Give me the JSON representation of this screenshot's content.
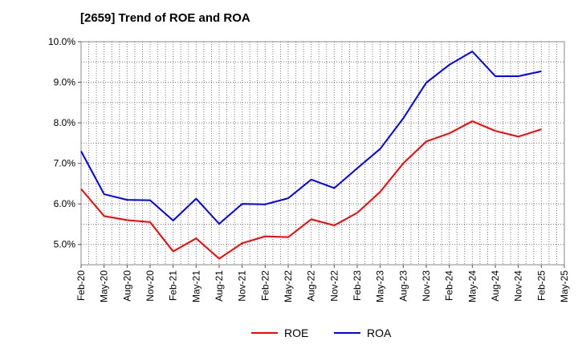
{
  "chart_data": {
    "type": "line",
    "title": "[2659]  Trend of ROE and ROA",
    "xlabel": "",
    "ylabel": "",
    "categories": [
      "Feb-20",
      "May-20",
      "Aug-20",
      "Nov-20",
      "Feb-21",
      "May-21",
      "Aug-21",
      "Nov-21",
      "Feb-22",
      "May-22",
      "Aug-22",
      "Nov-22",
      "Feb-23",
      "May-23",
      "Aug-23",
      "Nov-23",
      "Feb-24",
      "May-24",
      "Aug-24",
      "Nov-24",
      "Feb-25",
      "May-25"
    ],
    "ylim": [
      4.5,
      10.0
    ],
    "yticks": [
      5.0,
      6.0,
      7.0,
      8.0,
      9.0,
      10.0
    ],
    "ytick_labels": [
      "5.0%",
      "6.0%",
      "7.0%",
      "8.0%",
      "9.0%",
      "10.0%"
    ],
    "grid": true,
    "legend_position": "bottom-center",
    "series": [
      {
        "name": "ROE",
        "color": "#ff0000",
        "values": [
          6.37,
          5.7,
          5.6,
          5.55,
          4.83,
          5.15,
          4.65,
          5.03,
          5.2,
          5.18,
          5.62,
          5.47,
          5.78,
          6.3,
          7.0,
          7.54,
          7.74,
          8.04,
          7.8,
          7.66,
          7.84,
          null
        ]
      },
      {
        "name": "ROA",
        "color": "#0000ff",
        "values": [
          7.3,
          6.24,
          6.1,
          6.09,
          5.59,
          6.13,
          5.51,
          6.0,
          5.99,
          6.14,
          6.6,
          6.39,
          6.88,
          7.36,
          8.11,
          8.99,
          9.43,
          9.76,
          9.15,
          9.15,
          9.27,
          null
        ]
      }
    ]
  }
}
